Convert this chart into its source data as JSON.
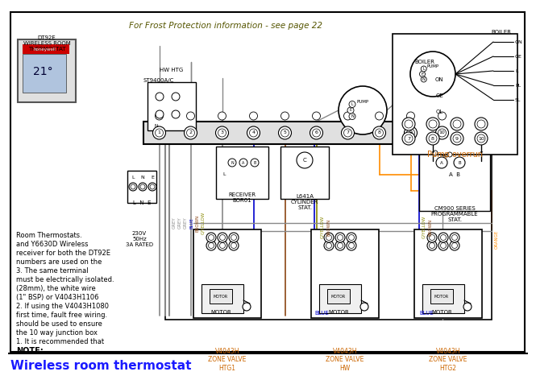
{
  "title": "Wireless room thermostat",
  "title_color": "#1a1aff",
  "title_fontsize": 11,
  "bg_color": "#ffffff",
  "note_title": "NOTE:",
  "note_lines": [
    "1. It is recommended that",
    "the 10 way junction box",
    "should be used to ensure",
    "first time, fault free wiring.",
    "2. If using the V4043H1080",
    "(1\" BSP) or V4043H1106",
    "(28mm), the white wire",
    "must be electrically isolated.",
    "3. The same terminal",
    "numbers are used on the",
    "receiver for both the DT92E",
    "and Y6630D Wireless",
    "Room Thermostats."
  ],
  "valve_labels": [
    "V4043H\nZONE VALVE\nHTG1",
    "V4043H\nZONE VALVE\nHW",
    "V4043H\nZONE VALVE\nHTG2"
  ],
  "wire_colors": {
    "grey": "#888888",
    "blue": "#0000cc",
    "brown": "#8B4513",
    "g_yellow": "#888800",
    "orange": "#FF8C00",
    "black": "#000000"
  },
  "label_color": "#cc6600",
  "frost_label": "For Frost Protection information - see page 22",
  "dt92e_label": "DT92E\nWIRELESS ROOM\nTHERMOSTAT"
}
